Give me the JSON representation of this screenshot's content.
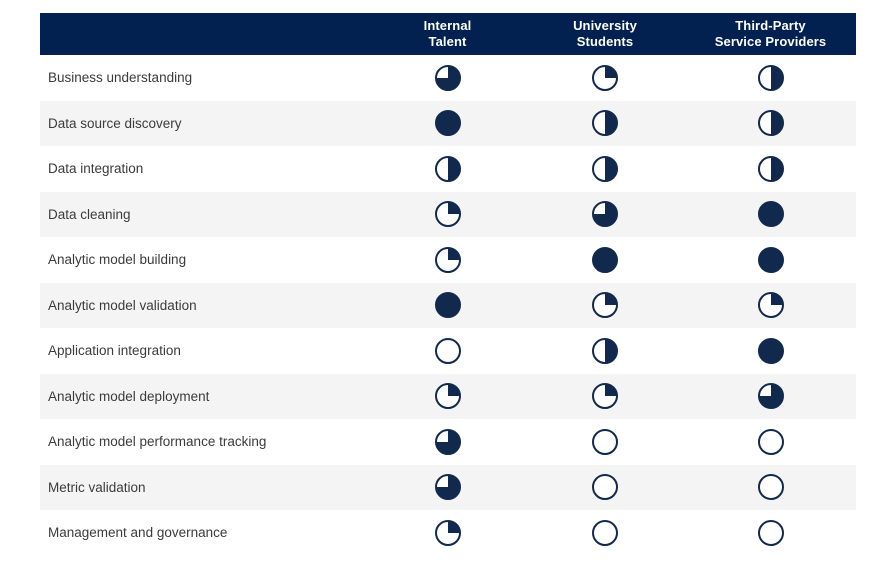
{
  "colors": {
    "header_bg": "#032150",
    "header_text": "#ffffff",
    "ball": "#12294e",
    "stripe": "#f4f4f4",
    "label_text": "#3b3b3b"
  },
  "table": {
    "columns": [
      {
        "label": "Internal\nTalent"
      },
      {
        "label": "University\nStudents"
      },
      {
        "label": "Third-Party\nService Providers"
      }
    ],
    "rows": [
      {
        "label": "Business understanding",
        "values": [
          0.75,
          0.25,
          0.5
        ]
      },
      {
        "label": "Data source discovery",
        "values": [
          1,
          0.5,
          0.5
        ]
      },
      {
        "label": "Data integration",
        "values": [
          0.5,
          0.5,
          0.5
        ]
      },
      {
        "label": "Data cleaning",
        "values": [
          0.25,
          0.75,
          1
        ]
      },
      {
        "label": "Analytic model building",
        "values": [
          0.25,
          1,
          1
        ]
      },
      {
        "label": "Analytic model validation",
        "values": [
          1,
          0.25,
          0.25
        ]
      },
      {
        "label": "Application integration",
        "values": [
          0,
          0.5,
          1
        ]
      },
      {
        "label": "Analytic model deployment",
        "values": [
          0.25,
          0.25,
          0.75
        ]
      },
      {
        "label": "Analytic model performance tracking",
        "values": [
          0.75,
          0,
          0
        ]
      },
      {
        "label": "Metric validation",
        "values": [
          0.75,
          0,
          0
        ]
      },
      {
        "label": "Management and governance",
        "values": [
          0.25,
          0,
          0
        ]
      }
    ]
  },
  "chart_data": {
    "type": "table",
    "title": "",
    "categories": [
      "Business understanding",
      "Data source discovery",
      "Data integration",
      "Data cleaning",
      "Analytic model building",
      "Analytic model validation",
      "Application integration",
      "Analytic model deployment",
      "Analytic model performance tracking",
      "Metric validation",
      "Management and governance"
    ],
    "series": [
      {
        "name": "Internal Talent",
        "values": [
          0.75,
          1,
          0.5,
          0.25,
          0.25,
          1,
          0,
          0.25,
          0.75,
          0.75,
          0.25
        ]
      },
      {
        "name": "University Students",
        "values": [
          0.25,
          0.5,
          0.5,
          0.75,
          1,
          0.25,
          0.5,
          0.25,
          0,
          0,
          0
        ]
      },
      {
        "name": "Third-Party Service Providers",
        "values": [
          0.5,
          0.5,
          0.5,
          1,
          1,
          0.25,
          1,
          0.75,
          0,
          0,
          0
        ]
      }
    ],
    "value_encoding": "harvey-ball fill fraction (0, 0.25, 0.5, 0.75, 1) filled clockwise from 12 o'clock",
    "legend_position": "none",
    "grid": "alternating row stripes, header band navy"
  }
}
